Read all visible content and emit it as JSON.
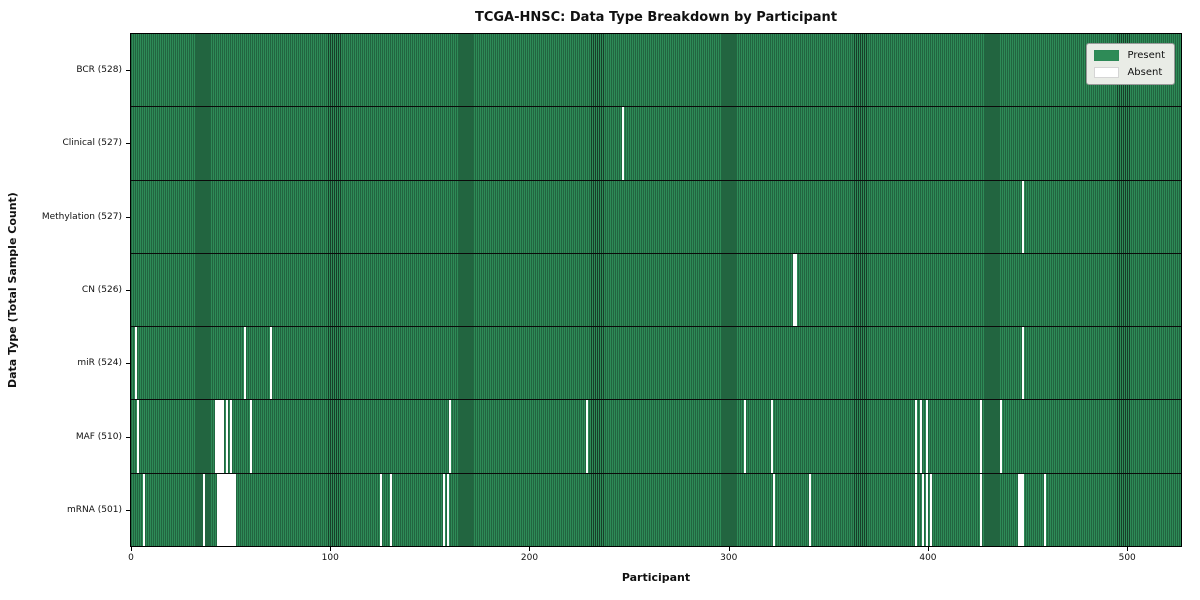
{
  "title": "TCGA-HNSC: Data Type Breakdown by Participant",
  "xlabel": "Participant",
  "ylabel": "Data Type (Total Sample Count)",
  "legend": {
    "present_label": "Present",
    "absent_label": "Absent"
  },
  "colors": {
    "present": "#2e8b57",
    "present_edge": "#173f29",
    "absent": "#ffffff",
    "legend_bg": "#e9ece6"
  },
  "chart_data": {
    "type": "heatmap",
    "title": "TCGA-HNSC: Data Type Breakdown by Participant",
    "xlabel": "Participant",
    "ylabel": "Data Type (Total Sample Count)",
    "legend_entries": [
      "Present",
      "Absent"
    ],
    "legend_position": "upper right",
    "total_participants": 528,
    "xlim": [
      0,
      528
    ],
    "x_ticks": [
      "0",
      "100",
      "200",
      "300",
      "400",
      "500"
    ],
    "rows": [
      {
        "label": "BCR (528)",
        "data_type": "BCR",
        "present_count": 528,
        "absent_participants": []
      },
      {
        "label": "Clinical (527)",
        "data_type": "Clinical",
        "present_count": 527,
        "absent_participants": [
          247
        ]
      },
      {
        "label": "Methylation (527)",
        "data_type": "Methylation",
        "present_count": 527,
        "absent_participants": [
          448
        ]
      },
      {
        "label": "CN (526)",
        "data_type": "CN",
        "present_count": 526,
        "absent_participants": [
          333,
          334
        ]
      },
      {
        "label": "miR (524)",
        "data_type": "miR",
        "present_count": 524,
        "absent_participants": [
          2,
          57,
          70,
          448
        ]
      },
      {
        "label": "MAF (510)",
        "data_type": "MAF",
        "present_count": 510,
        "absent_participants": [
          3,
          42,
          43,
          44,
          45,
          46,
          48,
          50,
          60,
          160,
          229,
          308,
          322,
          394,
          397,
          400,
          427,
          437
        ]
      },
      {
        "label": "mRNA (501)",
        "data_type": "mRNA",
        "present_count": 501,
        "absent_participants": [
          6,
          36,
          43,
          44,
          45,
          46,
          47,
          48,
          49,
          50,
          51,
          52,
          125,
          130,
          157,
          159,
          323,
          341,
          394,
          398,
          400,
          402,
          427,
          446,
          447,
          448,
          459
        ]
      }
    ]
  }
}
